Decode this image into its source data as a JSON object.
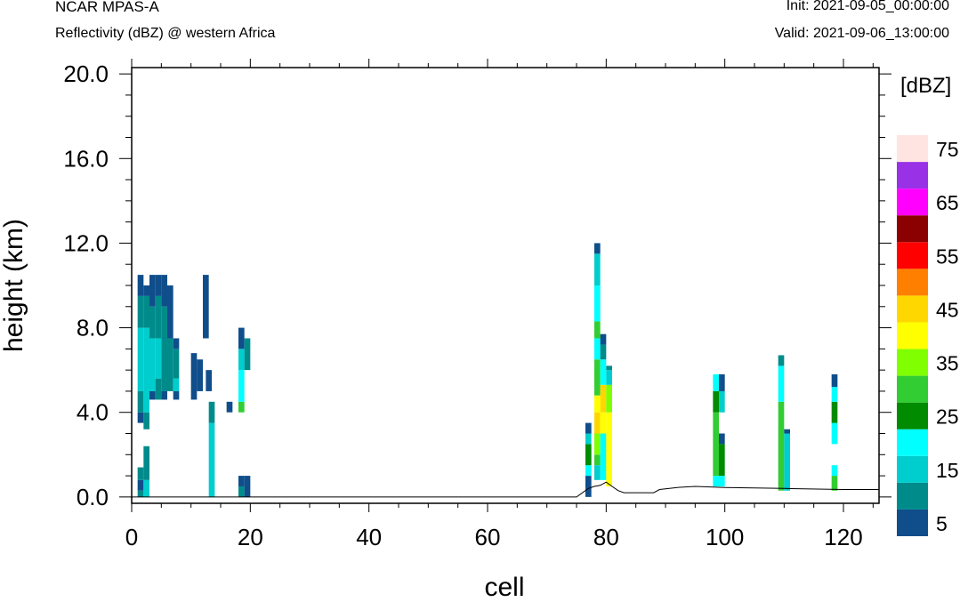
{
  "header": {
    "model": "NCAR MPAS-A",
    "field": "Reflectivity (dBZ) @ western Africa",
    "init": "Init: 2021-09-05_00:00:00",
    "valid": "Valid: 2021-09-06_13:00:00"
  },
  "chart_data": {
    "type": "heatmap",
    "title": "Reflectivity (dBZ) @ western Africa",
    "xlabel": "cell",
    "ylabel": "height (km)",
    "xlim": [
      0,
      126
    ],
    "ylim": [
      -0.3,
      20.3
    ],
    "xticks": [
      0,
      20,
      40,
      60,
      80,
      100,
      120
    ],
    "yticks": [
      0.0,
      4.0,
      8.0,
      12.0,
      16.0,
      20.0
    ],
    "ytick_labels": [
      "0.0",
      "4.0",
      "8.0",
      "12.0",
      "16.0",
      "20.0"
    ],
    "colorbar": {
      "label": "[dBZ]",
      "levels": [
        5,
        10,
        15,
        20,
        25,
        30,
        35,
        40,
        45,
        50,
        55,
        60,
        65,
        70,
        75
      ],
      "tick_labels": [
        "5",
        "15",
        "25",
        "35",
        "45",
        "55",
        "65",
        "75"
      ],
      "colors": [
        "#104e8b",
        "#008b8b",
        "#00cdcd",
        "#00ffff",
        "#008b00",
        "#32cd32",
        "#7fff00",
        "#ffff00",
        "#ffd700",
        "#ff8000",
        "#ff0000",
        "#8b0000",
        "#ff00ff",
        "#9932e6",
        "#ffe4e1"
      ]
    },
    "columns": [
      {
        "x": 1,
        "runs": [
          [
            0.0,
            0.3,
            "#008b8b"
          ],
          [
            0.3,
            0.8,
            "#104e8b"
          ],
          [
            0.8,
            1.4,
            "#008b8b"
          ],
          [
            3.5,
            4.0,
            "#104e8b"
          ],
          [
            4.0,
            5.0,
            "#008b8b"
          ],
          [
            5.0,
            8.0,
            "#00cdcd"
          ],
          [
            8.0,
            9.5,
            "#008b8b"
          ],
          [
            9.5,
            10.5,
            "#104e8b"
          ]
        ]
      },
      {
        "x": 2,
        "runs": [
          [
            0.0,
            0.8,
            "#00cdcd"
          ],
          [
            0.8,
            2.4,
            "#008b8b"
          ],
          [
            3.2,
            4.0,
            "#008b8b"
          ],
          [
            4.0,
            8.0,
            "#00cdcd"
          ],
          [
            8.0,
            9.5,
            "#008b8b"
          ],
          [
            9.5,
            10.0,
            "#104e8b"
          ]
        ]
      },
      {
        "x": 3,
        "runs": [
          [
            4.6,
            5.0,
            "#104e8b"
          ],
          [
            5.0,
            7.5,
            "#00cdcd"
          ],
          [
            7.5,
            9.0,
            "#008b8b"
          ],
          [
            9.0,
            10.5,
            "#104e8b"
          ]
        ]
      },
      {
        "x": 4,
        "runs": [
          [
            4.6,
            5.6,
            "#008b8b"
          ],
          [
            5.6,
            7.5,
            "#00cdcd"
          ],
          [
            7.5,
            9.5,
            "#008b8b"
          ],
          [
            9.5,
            10.5,
            "#104e8b"
          ]
        ]
      },
      {
        "x": 5,
        "runs": [
          [
            4.6,
            5.0,
            "#104e8b"
          ],
          [
            5.0,
            9.0,
            "#008b8b"
          ],
          [
            9.0,
            10.5,
            "#104e8b"
          ]
        ]
      },
      {
        "x": 6,
        "runs": [
          [
            5.0,
            7.5,
            "#008b8b"
          ],
          [
            7.5,
            10.0,
            "#104e8b"
          ]
        ]
      },
      {
        "x": 7,
        "runs": [
          [
            4.6,
            5.0,
            "#104e8b"
          ],
          [
            5.0,
            5.6,
            "#00cdcd"
          ],
          [
            5.6,
            7.0,
            "#008b8b"
          ],
          [
            7.0,
            7.5,
            "#104e8b"
          ]
        ]
      },
      {
        "x": 10,
        "runs": [
          [
            4.6,
            6.8,
            "#104e8b"
          ]
        ]
      },
      {
        "x": 11,
        "runs": [
          [
            5.0,
            6.5,
            "#104e8b"
          ]
        ]
      },
      {
        "x": 12,
        "runs": [
          [
            7.5,
            10.5,
            "#104e8b"
          ]
        ]
      },
      {
        "x": 12.5,
        "runs": [
          [
            5.0,
            6.0,
            "#104e8b"
          ]
        ]
      },
      {
        "x": 13,
        "runs": [
          [
            0.0,
            3.5,
            "#00cdcd"
          ],
          [
            3.5,
            4.5,
            "#008b8b"
          ]
        ]
      },
      {
        "x": 16,
        "runs": [
          [
            4.0,
            4.5,
            "#104e8b"
          ]
        ]
      },
      {
        "x": 18,
        "runs": [
          [
            0.0,
            0.5,
            "#008b8b"
          ],
          [
            0.5,
            1.0,
            "#104e8b"
          ],
          [
            4.0,
            4.5,
            "#32cd32"
          ],
          [
            4.5,
            6.0,
            "#00ffff"
          ],
          [
            6.0,
            7.0,
            "#00cdcd"
          ],
          [
            7.0,
            8.0,
            "#104e8b"
          ]
        ]
      },
      {
        "x": 19,
        "runs": [
          [
            0.0,
            1.0,
            "#104e8b"
          ],
          [
            6.0,
            7.5,
            "#008b8b"
          ]
        ]
      },
      {
        "x": 76.5,
        "runs": [
          [
            0.0,
            1.0,
            "#104e8b"
          ],
          [
            1.0,
            1.5,
            "#00ffff"
          ],
          [
            1.5,
            2.5,
            "#008b00"
          ],
          [
            2.5,
            3.0,
            "#00cdcd"
          ],
          [
            3.0,
            3.5,
            "#104e8b"
          ]
        ]
      },
      {
        "x": 78,
        "runs": [
          [
            0.8,
            1.5,
            "#00cdcd"
          ],
          [
            1.5,
            2.0,
            "#32cd32"
          ],
          [
            2.0,
            3.0,
            "#7fff00"
          ],
          [
            3.0,
            4.0,
            "#ffd700"
          ],
          [
            4.0,
            4.8,
            "#ffff00"
          ],
          [
            4.8,
            6.5,
            "#32cd32"
          ],
          [
            6.5,
            7.5,
            "#00ffff"
          ],
          [
            7.5,
            8.3,
            "#32cd32"
          ],
          [
            8.3,
            10.0,
            "#00ffff"
          ],
          [
            10.0,
            11.5,
            "#00cdcd"
          ],
          [
            11.5,
            12.0,
            "#104e8b"
          ]
        ]
      },
      {
        "x": 79,
        "runs": [
          [
            0.8,
            3.0,
            "#00ffff"
          ],
          [
            3.0,
            4.0,
            "#ffff00"
          ],
          [
            4.0,
            5.3,
            "#ffd700"
          ],
          [
            5.3,
            6.5,
            "#00ffff"
          ],
          [
            6.5,
            7.2,
            "#008b8b"
          ],
          [
            7.2,
            7.7,
            "#104e8b"
          ]
        ]
      },
      {
        "x": 80,
        "runs": [
          [
            0.5,
            4.0,
            "#ffff00"
          ],
          [
            4.0,
            5.3,
            "#7fff00"
          ],
          [
            5.3,
            6.0,
            "#00cdcd"
          ],
          [
            6.0,
            6.2,
            "#008b8b"
          ]
        ]
      },
      {
        "x": 98,
        "runs": [
          [
            0.5,
            1.0,
            "#00ffff"
          ],
          [
            1.0,
            4.0,
            "#32cd32"
          ],
          [
            4.0,
            5.0,
            "#008b00"
          ],
          [
            5.0,
            5.8,
            "#00ffff"
          ]
        ]
      },
      {
        "x": 99,
        "runs": [
          [
            0.5,
            1.0,
            "#00ffff"
          ],
          [
            1.0,
            2.5,
            "#008b00"
          ],
          [
            2.5,
            3.0,
            "#104e8b"
          ],
          [
            4.0,
            5.0,
            "#00cdcd"
          ],
          [
            5.0,
            5.8,
            "#104e8b"
          ]
        ]
      },
      {
        "x": 109,
        "runs": [
          [
            0.3,
            4.5,
            "#32cd32"
          ],
          [
            4.5,
            6.2,
            "#00ffff"
          ],
          [
            6.2,
            6.7,
            "#008b8b"
          ]
        ]
      },
      {
        "x": 110,
        "runs": [
          [
            0.3,
            3.0,
            "#00cdcd"
          ],
          [
            3.0,
            3.2,
            "#104e8b"
          ]
        ]
      },
      {
        "x": 118,
        "runs": [
          [
            0.3,
            1.0,
            "#32cd32"
          ],
          [
            1.0,
            1.5,
            "#00ffff"
          ],
          [
            2.5,
            3.5,
            "#00ffff"
          ],
          [
            3.5,
            4.5,
            "#008b00"
          ],
          [
            4.5,
            5.2,
            "#00ffff"
          ],
          [
            5.2,
            5.8,
            "#104e8b"
          ]
        ]
      }
    ],
    "terrain": {
      "x": [
        0,
        75,
        77,
        78,
        79,
        80,
        81,
        82,
        83,
        85,
        86,
        88,
        89,
        92,
        95,
        100,
        110,
        120,
        126
      ],
      "y": [
        0.0,
        0.0,
        0.4,
        0.5,
        0.55,
        0.7,
        0.5,
        0.3,
        0.2,
        0.2,
        0.2,
        0.2,
        0.35,
        0.45,
        0.5,
        0.45,
        0.4,
        0.35,
        0.35
      ]
    }
  }
}
